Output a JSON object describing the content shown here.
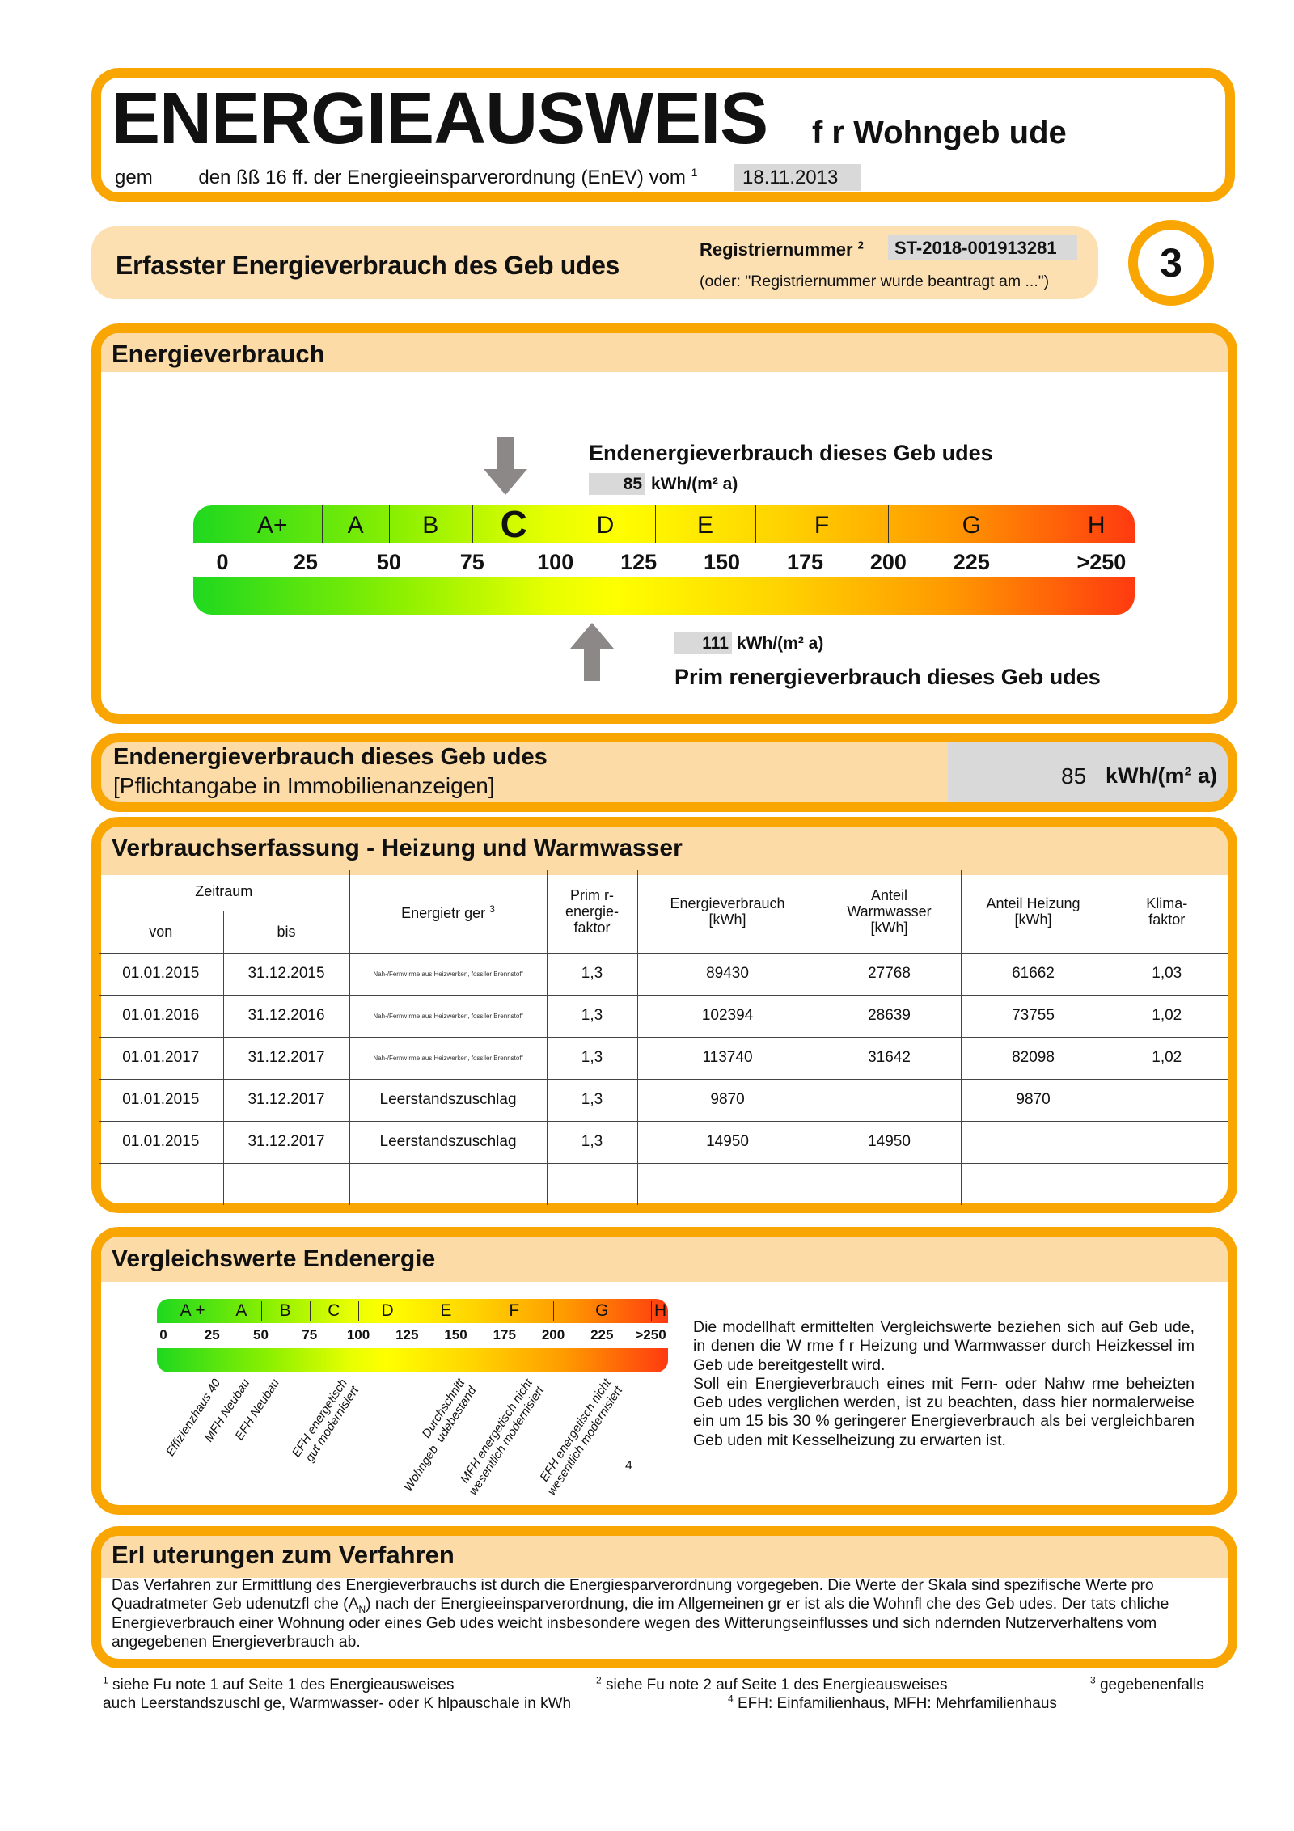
{
  "header": {
    "title": "ENERGIEAUSWEIS",
    "subtitle": "f r Wohngeb ude",
    "legal_prefix": "gem",
    "legal_text": "den ßß 16 ff. der Energieeinsparverordnung (EnEV) vom",
    "legal_sup": "1",
    "date": "18.11.2013"
  },
  "section_bar": {
    "title": "Erfasster Energieverbrauch des Geb udes",
    "reg_label": "Registriernummer",
    "reg_sup": "2",
    "reg_value": "ST-2018-001913281",
    "reg_note": "(oder: \"Registriernummer wurde beantragt am ...\")",
    "page_number": "3"
  },
  "energieverbrauch": {
    "title": "Energieverbrauch",
    "end_label": "Endenergieverbrauch dieses Geb udes",
    "end_value": "85",
    "end_unit": "kWh/(m² a)",
    "primary_label": "Prim  renergieverbrauch dieses Geb udes",
    "primary_value": "111",
    "primary_unit": "kWh/(m² a)",
    "end_value_num": 85,
    "primary_value_num": 111,
    "active_class": "C",
    "classes": [
      {
        "label": "A+",
        "from": 0,
        "to": 30
      },
      {
        "label": "A",
        "from": 30,
        "to": 50
      },
      {
        "label": "B",
        "from": 50,
        "to": 75
      },
      {
        "label": "C",
        "from": 75,
        "to": 100
      },
      {
        "label": "D",
        "from": 100,
        "to": 130
      },
      {
        "label": "E",
        "from": 130,
        "to": 160
      },
      {
        "label": "F",
        "from": 160,
        "to": 200
      },
      {
        "label": "G",
        "from": 200,
        "to": 250
      },
      {
        "label": "H",
        "from": 250,
        "to": 275
      }
    ],
    "ticks": [
      {
        "label": "0",
        "v": 0
      },
      {
        "label": "25",
        "v": 25
      },
      {
        "label": "50",
        "v": 50
      },
      {
        "label": "75",
        "v": 75
      },
      {
        "label": "100",
        "v": 100
      },
      {
        "label": "125",
        "v": 125
      },
      {
        "label": "150",
        "v": 150
      },
      {
        "label": "175",
        "v": 175
      },
      {
        "label": "200",
        "v": 200
      },
      {
        "label": "225",
        "v": 225
      },
      {
        "label": ">250",
        "v": 264
      }
    ],
    "colors": {
      "green": "#1fd81f",
      "yellow": "#ffff00",
      "orange": "#ff9a00",
      "red": "#ff3a10",
      "arrow": "#8c8888"
    }
  },
  "pflicht": {
    "line1": "Endenergieverbrauch dieses Geb udes",
    "line2": "[Pflichtangabe in Immobilienanzeigen]",
    "value": "85",
    "unit": "kWh/(m² a)"
  },
  "verbrauch": {
    "title": "Verbrauchserfassung - Heizung und Warmwasser",
    "headers": {
      "zeitraum": "Zeitraum",
      "von": "von",
      "bis": "bis",
      "traeger": "Energietr  ger",
      "traeger_sup": "3",
      "faktor": "Prim  r-\nenergie-\nfaktor",
      "verbrauch": "Energieverbrauch\n[kWh]",
      "warmwasser": "Anteil\nWarmwasser\n[kWh]",
      "heizung": "Anteil Heizung\n[kWh]",
      "klima": "Klima-\nfaktor"
    },
    "rows": [
      [
        "01.01.2015",
        "31.12.2015",
        "Nah-/Fernw  rme aus Heizwerken, fossiler Brennstoff",
        "1,3",
        "89430",
        "27768",
        "61662",
        "1,03"
      ],
      [
        "01.01.2016",
        "31.12.2016",
        "Nah-/Fernw  rme aus Heizwerken, fossiler Brennstoff",
        "1,3",
        "102394",
        "28639",
        "73755",
        "1,02"
      ],
      [
        "01.01.2017",
        "31.12.2017",
        "Nah-/Fernw  rme aus Heizwerken, fossiler Brennstoff",
        "1,3",
        "113740",
        "31642",
        "82098",
        "1,02"
      ],
      [
        "01.01.2015",
        "31.12.2017",
        "Leerstandszuschlag",
        "1,3",
        "9870",
        "",
        "9870",
        ""
      ],
      [
        "01.01.2015",
        "31.12.2017",
        "Leerstandszuschlag",
        "1,3",
        "14950",
        "14950",
        "",
        ""
      ],
      [
        "",
        "",
        "",
        "",
        "",
        "",
        "",
        ""
      ]
    ]
  },
  "vergleich": {
    "title": "Vergleichswerte Endenergie",
    "classes": [
      {
        "label": "A +",
        "from": 0,
        "to": 30
      },
      {
        "label": "A",
        "from": 30,
        "to": 50
      },
      {
        "label": "B",
        "from": 50,
        "to": 75
      },
      {
        "label": "C",
        "from": 75,
        "to": 100
      },
      {
        "label": "D",
        "from": 100,
        "to": 130
      },
      {
        "label": "E",
        "from": 130,
        "to": 160
      },
      {
        "label": "F",
        "from": 160,
        "to": 200
      },
      {
        "label": "G",
        "from": 200,
        "to": 250
      },
      {
        "label": "H",
        "from": 250,
        "to": 260
      }
    ],
    "ticks": [
      {
        "label": "0",
        "v": 0
      },
      {
        "label": "25",
        "v": 25
      },
      {
        "label": "50",
        "v": 50
      },
      {
        "label": "75",
        "v": 75
      },
      {
        "label": "100",
        "v": 100
      },
      {
        "label": "125",
        "v": 125
      },
      {
        "label": "150",
        "v": 150
      },
      {
        "label": "175",
        "v": 175
      },
      {
        "label": "200",
        "v": 200
      },
      {
        "label": "225",
        "v": 225
      },
      {
        "label": ">250",
        "v": 250
      }
    ],
    "refs": [
      {
        "label": "Effizienzhaus 40",
        "v": 25
      },
      {
        "label": "MFH Neubau",
        "v": 40
      },
      {
        "label": "EFH Neubau",
        "v": 55
      },
      {
        "label": "EFH energetisch\ngut modernisiert",
        "v": 90
      },
      {
        "label": "Durchschnitt\nWohngeb  udebestand",
        "v": 150
      },
      {
        "label": "MFH energetisch nicht\nwesentlich modernisiert",
        "v": 185
      },
      {
        "label": "EFH energetisch nicht\nwesentlich modernisiert",
        "v": 225
      }
    ],
    "footnote_mark": "4",
    "text": "Die modellhaft ermittelten Vergleichswerte beziehen sich auf Geb ude, in denen die W rme f r Heizung und Warmwasser durch Heizkessel im Geb ude bereitgestellt wird.",
    "text2": "Soll ein Energieverbrauch eines mit Fern- oder Nahw rme beheizten Geb udes verglichen werden, ist zu beachten, dass hier normalerweise ein um 15 bis 30 % geringerer Energieverbrauch als bei vergleichbaren Geb uden mit Kesselheizung zu erwarten ist."
  },
  "erlaeuterung": {
    "title": "Erl  uterungen zum Verfahren",
    "text_a": "Das Verfahren zur Ermittlung des Energieverbrauchs ist durch die Energiesparverordnung vorgegeben. Die Werte der Skala sind spezifische Werte pro Quadratmeter Geb  udenutzfl  che (A",
    "sub": "N",
    "text_b": ") nach der Energieeinsparverordnung, die im Allgemeinen gr    er ist als die Wohnfl  che des Geb  udes. Der tats  chliche Energieverbrauch einer Wohnung oder eines Geb  udes weicht insbesondere wegen des Witterungseinflusses und sich   ndernden Nutzerverhaltens vom angegebenen Energieverbrauch ab."
  },
  "footnotes": {
    "f1_sup": "1",
    "f1": "siehe Fu  note 1 auf Seite 1 des Energieausweises",
    "f2_sup": "2",
    "f2": "siehe Fu  note 2 auf Seite 1 des Energieausweises",
    "f3_sup": "3",
    "f3": "gegebenenfalls",
    "f3b": "auch Leerstandszuschl  ge, Warmwasser- oder K  hlpauschale in kWh",
    "f4_sup": "4",
    "f4": "EFH: Einfamilienhaus, MFH: Mehrfamilienhaus"
  }
}
